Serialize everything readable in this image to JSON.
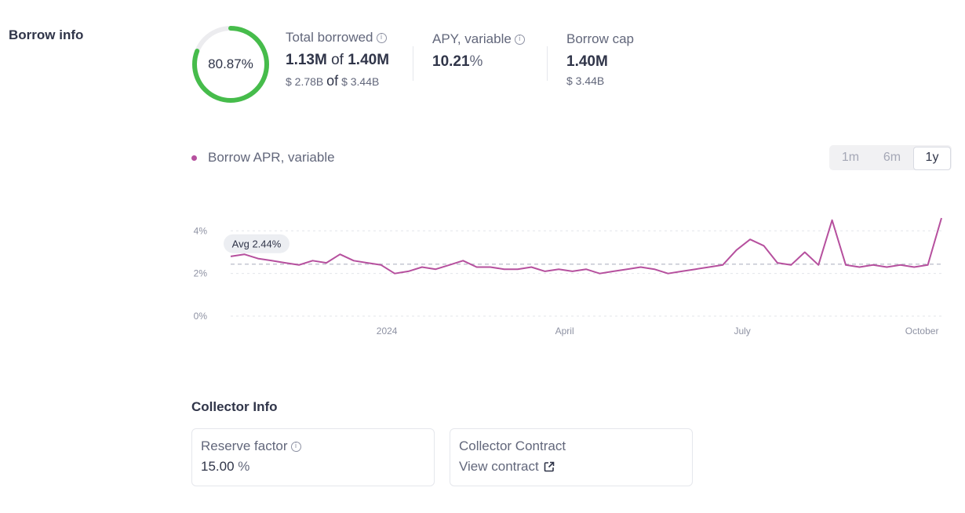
{
  "borrow_info": {
    "title": "Borrow info",
    "utilization": {
      "label": "80.87%",
      "fraction": 0.8087,
      "color": "#46bc4b"
    },
    "total_borrowed": {
      "label": "Total borrowed",
      "amount": "1.13M",
      "of": "of",
      "cap": "1.40M",
      "usd_amount": "$ 2.78B",
      "usd_of": "of",
      "usd_cap": "$ 3.44B"
    },
    "apy_variable": {
      "label": "APY, variable",
      "value": "10.21",
      "unit": "%"
    },
    "borrow_cap": {
      "label": "Borrow cap",
      "value": "1.40M",
      "usd": "$ 3.44B"
    }
  },
  "rate_chart": {
    "legend": "Borrow APR, variable",
    "legend_color": "#b6509e",
    "ranges": [
      "1m",
      "6m",
      "1y"
    ],
    "selected_range": "1y",
    "avg_label": "Avg 2.44%"
  },
  "chart_data": {
    "type": "line",
    "title": "",
    "xlabel": "",
    "ylabel": "",
    "ylim": [
      0,
      4.6
    ],
    "yticks": [
      "0%",
      "2%",
      "4%"
    ],
    "xticks": [
      "2024",
      "April",
      "July",
      "October"
    ],
    "grid": true,
    "average": 2.44,
    "series": [
      {
        "name": "Borrow APR, variable",
        "color": "#b6509e",
        "x": [
          "2023-10-13",
          "2023-10-20",
          "2023-10-27",
          "2023-11-03",
          "2023-11-10",
          "2023-11-17",
          "2023-11-24",
          "2023-12-01",
          "2023-12-08",
          "2023-12-15",
          "2023-12-22",
          "2023-12-29",
          "2024-01-05",
          "2024-01-12",
          "2024-01-19",
          "2024-01-26",
          "2024-02-02",
          "2024-02-09",
          "2024-02-16",
          "2024-02-23",
          "2024-03-01",
          "2024-03-08",
          "2024-03-15",
          "2024-03-22",
          "2024-03-29",
          "2024-04-05",
          "2024-04-12",
          "2024-04-19",
          "2024-04-26",
          "2024-05-03",
          "2024-05-10",
          "2024-05-17",
          "2024-05-24",
          "2024-05-31",
          "2024-06-07",
          "2024-06-14",
          "2024-06-21",
          "2024-06-28",
          "2024-07-05",
          "2024-07-12",
          "2024-07-19",
          "2024-07-26",
          "2024-08-02",
          "2024-08-09",
          "2024-08-16",
          "2024-08-23",
          "2024-08-30",
          "2024-09-06",
          "2024-09-13",
          "2024-09-20",
          "2024-09-27",
          "2024-10-04",
          "2024-10-11"
        ],
        "y": [
          2.8,
          2.9,
          2.7,
          2.6,
          2.5,
          2.4,
          2.6,
          2.5,
          2.9,
          2.6,
          2.5,
          2.4,
          2.0,
          2.1,
          2.3,
          2.2,
          2.4,
          2.6,
          2.3,
          2.3,
          2.2,
          2.2,
          2.3,
          2.1,
          2.2,
          2.1,
          2.2,
          2.0,
          2.1,
          2.2,
          2.3,
          2.2,
          2.0,
          2.1,
          2.2,
          2.3,
          2.4,
          3.1,
          3.6,
          3.3,
          2.5,
          2.4,
          3.0,
          2.4,
          4.5,
          2.4,
          2.3,
          2.4,
          2.3,
          2.4,
          2.3,
          2.4,
          4.6
        ]
      }
    ]
  },
  "collector": {
    "title": "Collector Info",
    "reserve_factor": {
      "label": "Reserve factor",
      "value": "15.00",
      "unit": "%"
    },
    "contract": {
      "label": "Collector Contract",
      "link": "View contract"
    }
  },
  "icons": {
    "info": "info-circle-icon",
    "external": "external-link-icon"
  }
}
